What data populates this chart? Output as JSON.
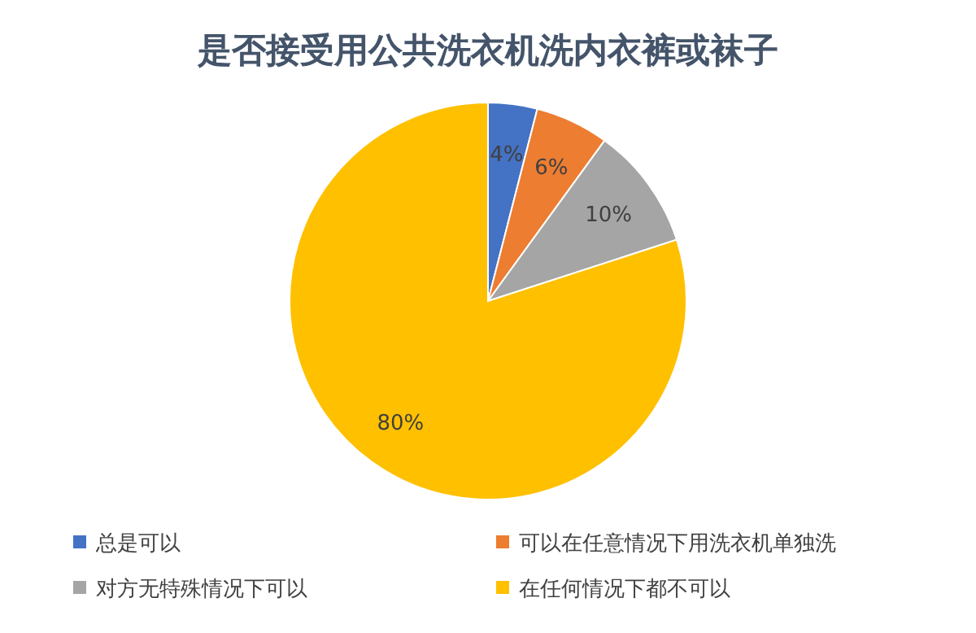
{
  "chart_data": {
    "type": "pie",
    "title": "是否接受用公共洗衣机洗内衣裤或袜子",
    "categories": [
      "总是可以",
      "可以在任意情况下用洗衣机单独洗",
      "对方无特殊情况下可以",
      "在任何情况下都不可以"
    ],
    "values": [
      4,
      6,
      10,
      80
    ],
    "colors": [
      "#4472c4",
      "#ed7d31",
      "#a5a5a5",
      "#ffc000"
    ],
    "value_labels": [
      "4%",
      "6%",
      "10%",
      "80%"
    ],
    "legend": "bottom"
  }
}
